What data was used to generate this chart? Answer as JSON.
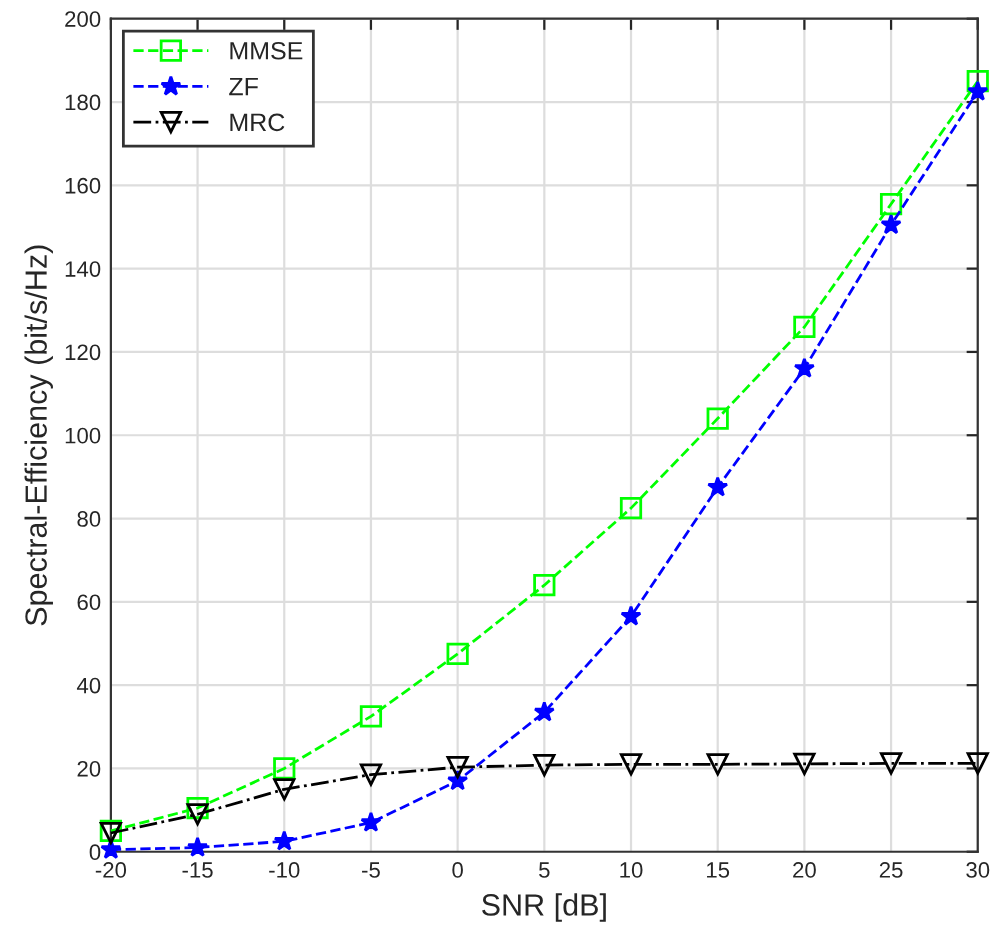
{
  "chart_data": {
    "type": "line",
    "xlabel": "SNR [dB]",
    "ylabel": "Spectral-Efficiency (bit/s/Hz)",
    "x": [
      -20,
      -15,
      -10,
      -5,
      0,
      5,
      10,
      15,
      20,
      25,
      30
    ],
    "series": [
      {
        "name": "MMSE",
        "color": "#00ff00",
        "marker": "square",
        "line_style": "dashed",
        "values": [
          5,
          10.5,
          20,
          32.5,
          47.5,
          64,
          82.5,
          104,
          126,
          155.5,
          185
        ]
      },
      {
        "name": "ZF",
        "color": "#0000ff",
        "marker": "star",
        "line_style": "dashed",
        "values": [
          0.5,
          1,
          2.5,
          7,
          17,
          33.5,
          56.5,
          87.5,
          116,
          150.5,
          182.5
        ]
      },
      {
        "name": "MRC",
        "color": "#000000",
        "marker": "triangle",
        "line_style": "dashdot",
        "values": [
          4.5,
          9,
          15,
          18.5,
          20.3,
          20.8,
          21,
          21,
          21.1,
          21.2,
          21.2
        ]
      }
    ],
    "xlim": [
      -20,
      30
    ],
    "xticks": [
      -20,
      -15,
      -10,
      -5,
      0,
      5,
      10,
      15,
      20,
      25,
      30
    ],
    "ylim": [
      0,
      200
    ],
    "yticks": [
      0,
      20,
      40,
      60,
      80,
      100,
      120,
      140,
      160,
      180,
      200
    ],
    "grid": true,
    "legend": "top left"
  }
}
